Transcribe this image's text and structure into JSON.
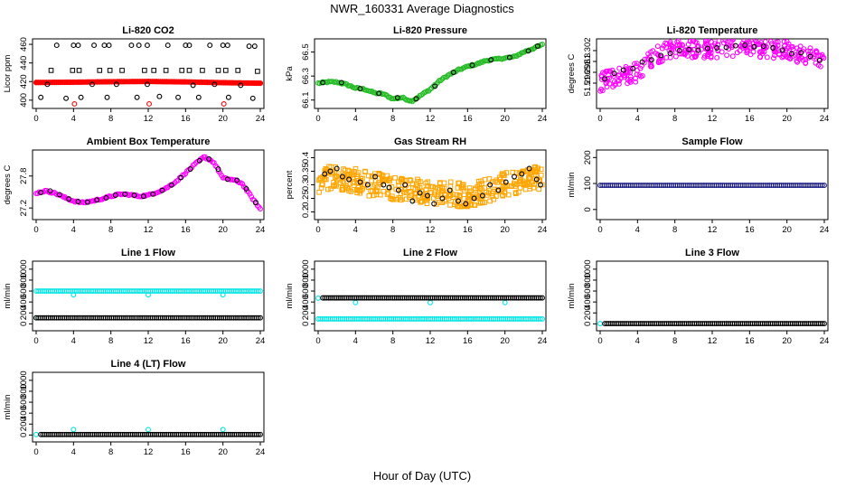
{
  "figure": {
    "title": "NWR_160331  Average Diagnostics",
    "xlabel": "Hour of Day (UTC)"
  },
  "colors": {
    "black": "#000000",
    "red": "#ff0000",
    "green": "#22bb22",
    "magenta": "#ff00ff",
    "orange": "#ffa500",
    "cyan": "#00e5e5",
    "navy": "#1a1a80"
  },
  "chart_data": [
    {
      "id": "co2",
      "type": "scatter",
      "title": "Li-820 CO2",
      "ylabel": "Licor ppm",
      "xlim": [
        0,
        24
      ],
      "ylim": [
        395,
        462
      ],
      "xticks": [
        0,
        4,
        8,
        12,
        16,
        20,
        24
      ],
      "yticks": [
        400,
        420,
        440,
        460
      ],
      "series": [
        {
          "color": "red",
          "marker": "dot",
          "kind": "line",
          "x": [
            0,
            4,
            8,
            12,
            16,
            20,
            24
          ],
          "y": [
            419,
            419.3,
            419.8,
            420.1,
            419.6,
            418.8,
            418.2
          ]
        },
        {
          "color": "red",
          "marker": "circle",
          "x": [
            4.1,
            12.1,
            20.1
          ],
          "y": [
            396,
            396,
            396
          ]
        },
        {
          "color": "black",
          "marker": "circle",
          "x": [
            2.2,
            4.0,
            4.5,
            6.2,
            7.3,
            7.8,
            10.2,
            11.0,
            11.9,
            14.1,
            16.0,
            16.4,
            18.6,
            20.0,
            20.5,
            22.8,
            23.4
          ],
          "y": [
            459,
            459,
            459,
            459,
            459,
            459,
            459,
            459,
            459,
            459,
            459,
            459,
            459,
            459,
            459,
            458,
            458
          ]
        },
        {
          "color": "black",
          "marker": "square",
          "x": [
            1.6,
            3.9,
            4.6,
            6.8,
            7.9,
            9.2,
            11.6,
            12.6,
            13.9,
            15.6,
            16.4,
            17.8,
            19.5,
            20.3,
            21.6,
            23.7
          ],
          "y": [
            432,
            432,
            432,
            432,
            432,
            432,
            432,
            432,
            432,
            432,
            432,
            432,
            432,
            432,
            432,
            431
          ]
        },
        {
          "color": "black",
          "marker": "circle",
          "x": [
            0.5,
            1.2,
            3.2,
            4.8,
            6.0,
            7.6,
            8.6,
            10.8,
            11.9,
            13.2,
            15.2,
            16.8,
            17.4,
            19.1,
            20.6,
            21.9,
            23.2
          ],
          "y": [
            403,
            417,
            402,
            403,
            417,
            403,
            417,
            403,
            417,
            404,
            403,
            416,
            403,
            417,
            403,
            416,
            402
          ]
        }
      ]
    },
    {
      "id": "pressure",
      "type": "scatter",
      "title": "Li-820 Pressure",
      "ylabel": "kPa",
      "xlim": [
        0,
        24
      ],
      "ylim": [
        66.06,
        66.58
      ],
      "xticks": [
        0,
        4,
        8,
        12,
        16,
        20,
        24
      ],
      "yticks": [
        66.1,
        66.3,
        66.5
      ],
      "series": [
        {
          "color": "green",
          "marker": "circle",
          "kind": "dense",
          "x": [
            0,
            1,
            2,
            3,
            4,
            5,
            6,
            7,
            8,
            9,
            10,
            11,
            12,
            13,
            14,
            15,
            16,
            17,
            18,
            19,
            20,
            21,
            22,
            23,
            24
          ],
          "y": [
            66.24,
            66.25,
            66.25,
            66.23,
            66.2,
            66.19,
            66.16,
            66.15,
            66.11,
            66.12,
            66.09,
            66.14,
            66.19,
            66.26,
            66.31,
            66.35,
            66.38,
            66.4,
            66.43,
            66.44,
            66.45,
            66.46,
            66.5,
            66.53,
            66.56
          ]
        },
        {
          "color": "black",
          "marker": "circle",
          "x": [
            0.5,
            2.5,
            4.5,
            6.5,
            8.5,
            10.5,
            12.5,
            14.5,
            16.5,
            18.5,
            20.5,
            22.5,
            23.5
          ],
          "y": [
            66.245,
            66.245,
            66.195,
            66.155,
            66.12,
            66.11,
            66.215,
            66.33,
            66.39,
            66.435,
            66.455,
            66.51,
            66.55
          ]
        }
      ]
    },
    {
      "id": "litemp",
      "type": "scatter",
      "title": "Li-820 Temperature",
      "ylabel": "degrees C",
      "xlim": [
        0,
        24
      ],
      "ylim": [
        51.292,
        51.3035
      ],
      "xticks": [
        0,
        4,
        8,
        12,
        16,
        20,
        24
      ],
      "yticks": [
        51.296,
        51.298,
        51.3,
        51.302
      ],
      "series": [
        {
          "color": "magenta",
          "marker": "circle",
          "kind": "dense-noisy",
          "x": [
            0,
            2,
            4,
            6,
            8,
            10,
            12,
            14,
            16,
            18,
            20,
            22,
            24
          ],
          "y": [
            51.2962,
            51.2973,
            51.298,
            51.3012,
            51.3024,
            51.3024,
            51.3022,
            51.3026,
            51.3026,
            51.3024,
            51.302,
            51.3012,
            51.2997
          ]
        },
        {
          "color": "black",
          "marker": "circle",
          "x": [
            0.5,
            1.5,
            2.5,
            3.5,
            4.5,
            5.5,
            6.5,
            7.5,
            8.5,
            9.5,
            10.5,
            11.5,
            12.5,
            13.5,
            14.5,
            15.5,
            16.5,
            17.5,
            18.5,
            19.5,
            20.5,
            21.5,
            22.5,
            23.5
          ],
          "y": [
            51.2968,
            51.2978,
            51.2984,
            51.2987,
            51.2999,
            51.3003,
            51.3011,
            51.3015,
            51.302,
            51.3022,
            51.3021,
            51.3024,
            51.3025,
            51.3026,
            51.3029,
            51.303,
            51.3027,
            51.3028,
            51.3025,
            51.3021,
            51.3014,
            51.3016,
            51.3009,
            51.3002
          ]
        }
      ]
    },
    {
      "id": "ambient",
      "type": "scatter",
      "title": "Ambient Box Temperature",
      "ylabel": "degrees C",
      "xlim": [
        0,
        24
      ],
      "ylim": [
        27.05,
        28.22
      ],
      "xticks": [
        0,
        4,
        8,
        12,
        16,
        20,
        24
      ],
      "yticks": [
        27.2,
        27.8
      ],
      "series": [
        {
          "color": "magenta",
          "marker": "circle",
          "kind": "dense",
          "x": [
            0,
            1,
            2,
            3,
            4,
            5,
            6,
            7,
            8,
            9,
            10,
            11,
            12,
            13,
            14,
            15,
            16,
            17,
            18,
            19,
            20,
            21,
            22,
            23,
            24
          ],
          "y": [
            27.48,
            27.52,
            27.48,
            27.4,
            27.33,
            27.3,
            27.33,
            27.37,
            27.42,
            27.46,
            27.45,
            27.42,
            27.44,
            27.5,
            27.58,
            27.7,
            27.86,
            28.02,
            28.16,
            28.06,
            27.76,
            27.73,
            27.67,
            27.42,
            27.18
          ]
        },
        {
          "color": "black",
          "marker": "circle",
          "x": [
            0.5,
            1.5,
            2.5,
            3.5,
            4.5,
            5.5,
            6.5,
            7.5,
            8.5,
            9.5,
            10.5,
            11.5,
            12.5,
            13.5,
            14.5,
            15.5,
            16.5,
            17.5,
            18.5,
            19.5,
            20.5,
            21.5,
            22.5,
            23.5
          ],
          "y": [
            27.49,
            27.52,
            27.45,
            27.37,
            27.32,
            27.31,
            27.35,
            27.39,
            27.44,
            27.46,
            27.44,
            27.42,
            27.46,
            27.53,
            27.63,
            27.77,
            27.93,
            28.09,
            28.12,
            27.93,
            27.74,
            27.72,
            27.56,
            27.3
          ]
        }
      ]
    },
    {
      "id": "rh",
      "type": "scatter",
      "title": "Gas Stream RH",
      "ylabel": "percent",
      "xlim": [
        0,
        24
      ],
      "ylim": [
        0.185,
        0.415
      ],
      "xticks": [
        0,
        4,
        8,
        12,
        16,
        20,
        24
      ],
      "yticks": [
        0.2,
        0.25,
        0.3,
        0.35,
        0.4
      ],
      "series": [
        {
          "color": "orange",
          "marker": "square",
          "kind": "band",
          "x": [
            0,
            2,
            4,
            6,
            8,
            10,
            12,
            14,
            16,
            18,
            20,
            22,
            24
          ],
          "y": [
            0.315,
            0.33,
            0.315,
            0.3,
            0.29,
            0.28,
            0.275,
            0.27,
            0.26,
            0.28,
            0.3,
            0.32,
            0.33
          ],
          "spread": 0.045
        },
        {
          "color": "black",
          "marker": "circle",
          "x": [
            0.7,
            1.3,
            2.0,
            2.6,
            3.3,
            4.5,
            5.3,
            6.1,
            7.0,
            7.6,
            8.6,
            9.3,
            10.1,
            10.9,
            11.7,
            12.4,
            13.3,
            14.1,
            15.0,
            15.8,
            16.7,
            17.6,
            18.4,
            19.3,
            20.1,
            21.0,
            21.8,
            22.6,
            23.4,
            23.8
          ],
          "y": [
            0.34,
            0.35,
            0.36,
            0.33,
            0.32,
            0.31,
            0.3,
            0.33,
            0.3,
            0.29,
            0.28,
            0.3,
            0.24,
            0.27,
            0.26,
            0.23,
            0.25,
            0.28,
            0.24,
            0.23,
            0.25,
            0.26,
            0.3,
            0.28,
            0.31,
            0.33,
            0.34,
            0.36,
            0.32,
            0.3
          ]
        }
      ]
    },
    {
      "id": "sampleflow",
      "type": "scatter",
      "title": "Sample Flow",
      "ylabel": "ml/min",
      "xlim": [
        0,
        24
      ],
      "ylim": [
        -25,
        215
      ],
      "xticks": [
        0,
        4,
        8,
        12,
        16,
        20,
        24
      ],
      "yticks": [
        0,
        100,
        200
      ],
      "series": [
        {
          "color": "navy",
          "marker": "circle",
          "kind": "flat",
          "x": [
            0,
            24
          ],
          "y": [
            93,
            93
          ]
        }
      ]
    },
    {
      "id": "line1",
      "type": "scatter",
      "title": "Line 1 Flow",
      "ylabel": "ml/min",
      "xlim": [
        0,
        24
      ],
      "ylim": [
        -60,
        1080
      ],
      "xticks": [
        0,
        4,
        8,
        12,
        16,
        20,
        24
      ],
      "yticks": [
        0,
        200,
        400,
        600,
        800,
        1000
      ],
      "series": [
        {
          "color": "cyan",
          "marker": "circle",
          "kind": "flat",
          "x": [
            0,
            24
          ],
          "y": [
            600,
            600
          ]
        },
        {
          "color": "cyan",
          "marker": "circle",
          "x": [
            0,
            4,
            12,
            20
          ],
          "y": [
            110,
            530,
            530,
            530
          ]
        },
        {
          "color": "black",
          "marker": "circle",
          "kind": "flat",
          "x": [
            0,
            24
          ],
          "y": [
            110,
            110
          ]
        }
      ]
    },
    {
      "id": "line2",
      "type": "scatter",
      "title": "Line 2 Flow",
      "ylabel": "ml/min",
      "xlim": [
        0,
        24
      ],
      "ylim": [
        -60,
        1080
      ],
      "xticks": [
        0,
        4,
        8,
        12,
        16,
        20,
        24
      ],
      "yticks": [
        0,
        200,
        400,
        600,
        800,
        1000
      ],
      "series": [
        {
          "color": "cyan",
          "marker": "circle",
          "kind": "flat",
          "x": [
            0,
            24
          ],
          "y": [
            90,
            90
          ]
        },
        {
          "color": "cyan",
          "marker": "circle",
          "x": [
            0,
            4,
            12,
            20
          ],
          "y": [
            470,
            390,
            390,
            390
          ]
        },
        {
          "color": "black",
          "marker": "circle",
          "kind": "flat",
          "x": [
            0.5,
            24
          ],
          "y": [
            475,
            475
          ]
        }
      ]
    },
    {
      "id": "line3",
      "type": "scatter",
      "title": "Line 3 Flow",
      "ylabel": "ml/min",
      "xlim": [
        0,
        24
      ],
      "ylim": [
        -60,
        1080
      ],
      "xticks": [
        0,
        4,
        8,
        12,
        16,
        20,
        24
      ],
      "yticks": [
        0,
        200,
        400,
        600,
        800,
        1000
      ],
      "series": [
        {
          "color": "cyan",
          "marker": "circle",
          "x": [
            0
          ],
          "y": [
            5
          ]
        },
        {
          "color": "black",
          "marker": "circle",
          "kind": "flat",
          "x": [
            0.5,
            24
          ],
          "y": [
            5,
            5
          ]
        }
      ]
    },
    {
      "id": "line4",
      "type": "scatter",
      "title": "Line 4 (LT) Flow",
      "ylabel": "ml/min",
      "xlim": [
        0,
        24
      ],
      "ylim": [
        -60,
        1080
      ],
      "xticks": [
        0,
        4,
        8,
        12,
        16,
        20,
        24
      ],
      "yticks": [
        0,
        200,
        400,
        600,
        800,
        1000
      ],
      "series": [
        {
          "color": "cyan",
          "marker": "circle",
          "x": [
            0,
            4,
            12,
            20
          ],
          "y": [
            10,
            100,
            100,
            100
          ]
        },
        {
          "color": "black",
          "marker": "circle",
          "kind": "flat",
          "x": [
            0.5,
            24
          ],
          "y": [
            10,
            10
          ]
        }
      ]
    }
  ]
}
